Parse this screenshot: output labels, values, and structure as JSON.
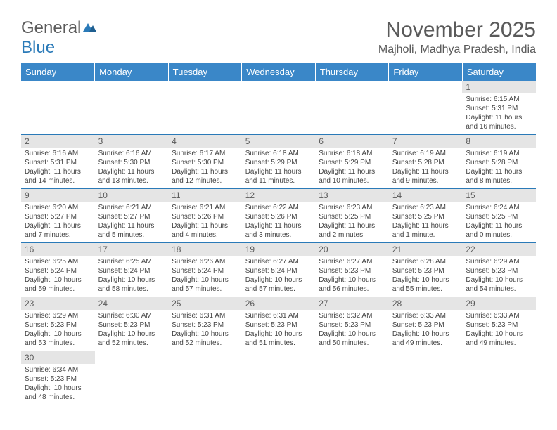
{
  "logo": {
    "text1": "General",
    "text2": "Blue",
    "color1": "#5a5a5a",
    "color2": "#2a7ab8"
  },
  "title": "November 2025",
  "location": "Majholi, Madhya Pradesh, India",
  "headerBg": "#3a87c8",
  "dayHeaderBg": "#e5e5e5",
  "weekdays": [
    "Sunday",
    "Monday",
    "Tuesday",
    "Wednesday",
    "Thursday",
    "Friday",
    "Saturday"
  ],
  "startWeekday": 6,
  "days": [
    {
      "n": 1,
      "sr": "6:15 AM",
      "ss": "5:31 PM",
      "dl": "11 hours and 16 minutes."
    },
    {
      "n": 2,
      "sr": "6:16 AM",
      "ss": "5:31 PM",
      "dl": "11 hours and 14 minutes."
    },
    {
      "n": 3,
      "sr": "6:16 AM",
      "ss": "5:30 PM",
      "dl": "11 hours and 13 minutes."
    },
    {
      "n": 4,
      "sr": "6:17 AM",
      "ss": "5:30 PM",
      "dl": "11 hours and 12 minutes."
    },
    {
      "n": 5,
      "sr": "6:18 AM",
      "ss": "5:29 PM",
      "dl": "11 hours and 11 minutes."
    },
    {
      "n": 6,
      "sr": "6:18 AM",
      "ss": "5:29 PM",
      "dl": "11 hours and 10 minutes."
    },
    {
      "n": 7,
      "sr": "6:19 AM",
      "ss": "5:28 PM",
      "dl": "11 hours and 9 minutes."
    },
    {
      "n": 8,
      "sr": "6:19 AM",
      "ss": "5:28 PM",
      "dl": "11 hours and 8 minutes."
    },
    {
      "n": 9,
      "sr": "6:20 AM",
      "ss": "5:27 PM",
      "dl": "11 hours and 7 minutes."
    },
    {
      "n": 10,
      "sr": "6:21 AM",
      "ss": "5:27 PM",
      "dl": "11 hours and 5 minutes."
    },
    {
      "n": 11,
      "sr": "6:21 AM",
      "ss": "5:26 PM",
      "dl": "11 hours and 4 minutes."
    },
    {
      "n": 12,
      "sr": "6:22 AM",
      "ss": "5:26 PM",
      "dl": "11 hours and 3 minutes."
    },
    {
      "n": 13,
      "sr": "6:23 AM",
      "ss": "5:25 PM",
      "dl": "11 hours and 2 minutes."
    },
    {
      "n": 14,
      "sr": "6:23 AM",
      "ss": "5:25 PM",
      "dl": "11 hours and 1 minute."
    },
    {
      "n": 15,
      "sr": "6:24 AM",
      "ss": "5:25 PM",
      "dl": "11 hours and 0 minutes."
    },
    {
      "n": 16,
      "sr": "6:25 AM",
      "ss": "5:24 PM",
      "dl": "10 hours and 59 minutes."
    },
    {
      "n": 17,
      "sr": "6:25 AM",
      "ss": "5:24 PM",
      "dl": "10 hours and 58 minutes."
    },
    {
      "n": 18,
      "sr": "6:26 AM",
      "ss": "5:24 PM",
      "dl": "10 hours and 57 minutes."
    },
    {
      "n": 19,
      "sr": "6:27 AM",
      "ss": "5:24 PM",
      "dl": "10 hours and 57 minutes."
    },
    {
      "n": 20,
      "sr": "6:27 AM",
      "ss": "5:23 PM",
      "dl": "10 hours and 56 minutes."
    },
    {
      "n": 21,
      "sr": "6:28 AM",
      "ss": "5:23 PM",
      "dl": "10 hours and 55 minutes."
    },
    {
      "n": 22,
      "sr": "6:29 AM",
      "ss": "5:23 PM",
      "dl": "10 hours and 54 minutes."
    },
    {
      "n": 23,
      "sr": "6:29 AM",
      "ss": "5:23 PM",
      "dl": "10 hours and 53 minutes."
    },
    {
      "n": 24,
      "sr": "6:30 AM",
      "ss": "5:23 PM",
      "dl": "10 hours and 52 minutes."
    },
    {
      "n": 25,
      "sr": "6:31 AM",
      "ss": "5:23 PM",
      "dl": "10 hours and 52 minutes."
    },
    {
      "n": 26,
      "sr": "6:31 AM",
      "ss": "5:23 PM",
      "dl": "10 hours and 51 minutes."
    },
    {
      "n": 27,
      "sr": "6:32 AM",
      "ss": "5:23 PM",
      "dl": "10 hours and 50 minutes."
    },
    {
      "n": 28,
      "sr": "6:33 AM",
      "ss": "5:23 PM",
      "dl": "10 hours and 49 minutes."
    },
    {
      "n": 29,
      "sr": "6:33 AM",
      "ss": "5:23 PM",
      "dl": "10 hours and 49 minutes."
    },
    {
      "n": 30,
      "sr": "6:34 AM",
      "ss": "5:23 PM",
      "dl": "10 hours and 48 minutes."
    }
  ],
  "labels": {
    "sunrise": "Sunrise:",
    "sunset": "Sunset:",
    "daylight": "Daylight:"
  }
}
